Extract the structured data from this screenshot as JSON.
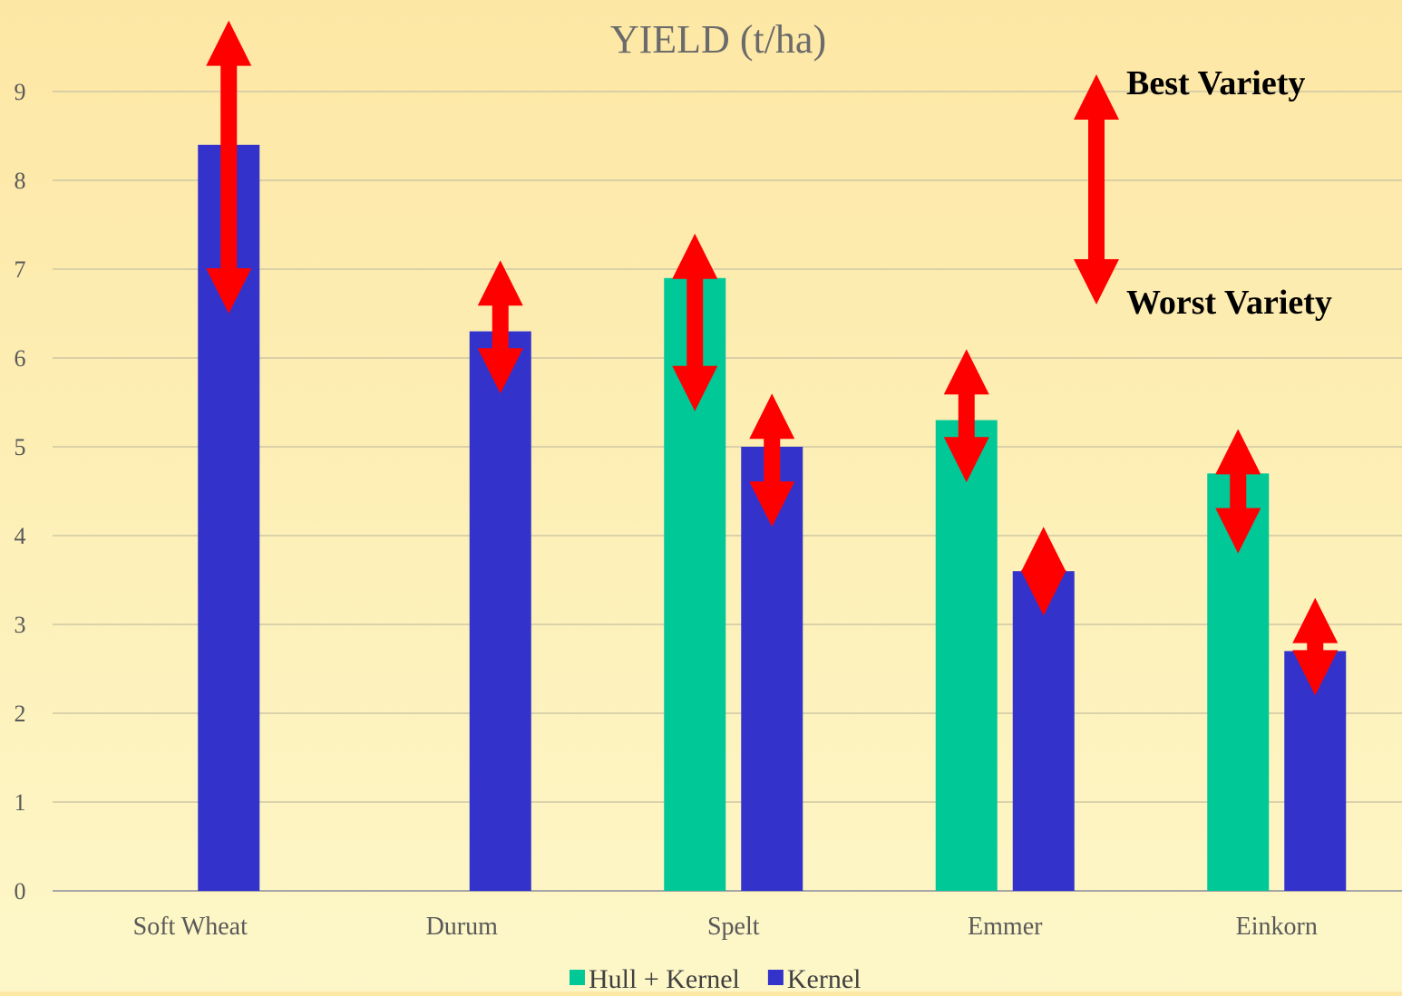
{
  "chart_data": {
    "type": "bar",
    "title": "YIELD (t/ha)",
    "xlabel": "",
    "ylabel": "",
    "ylim": [
      0,
      9
    ],
    "yticks": [
      0,
      1,
      2,
      3,
      4,
      5,
      6,
      7,
      8,
      9
    ],
    "grid": true,
    "legend_position": "bottom",
    "categories": [
      "Soft Wheat",
      "Durum",
      "Spelt",
      "Emmer",
      "Einkorn"
    ],
    "series": [
      {
        "name": "Hull + Kernel",
        "color": "#00c896",
        "values": [
          null,
          null,
          6.9,
          5.3,
          4.7
        ]
      },
      {
        "name": "Kernel",
        "color": "#3333cc",
        "values": [
          8.4,
          6.3,
          5.0,
          3.6,
          2.7
        ]
      }
    ],
    "ranges": {
      "color": "#ff0000",
      "items": [
        {
          "category": "Soft Wheat",
          "series": "Kernel",
          "high": 9.8,
          "low": 6.5
        },
        {
          "category": "Durum",
          "series": "Kernel",
          "high": 7.1,
          "low": 5.6
        },
        {
          "category": "Spelt",
          "series": "Hull + Kernel",
          "high": 7.4,
          "low": 5.4
        },
        {
          "category": "Spelt",
          "series": "Kernel",
          "high": 5.6,
          "low": 4.1
        },
        {
          "category": "Emmer",
          "series": "Hull + Kernel",
          "high": 6.1,
          "low": 4.6
        },
        {
          "category": "Emmer",
          "series": "Kernel",
          "high": 4.1,
          "low": 3.1
        },
        {
          "category": "Einkorn",
          "series": "Hull + Kernel",
          "high": 5.2,
          "low": 3.8
        },
        {
          "category": "Einkorn",
          "series": "Kernel",
          "high": 3.3,
          "low": 2.2
        }
      ]
    },
    "annotations": {
      "best": "Best Variety",
      "worst": "Worst Variety"
    }
  }
}
